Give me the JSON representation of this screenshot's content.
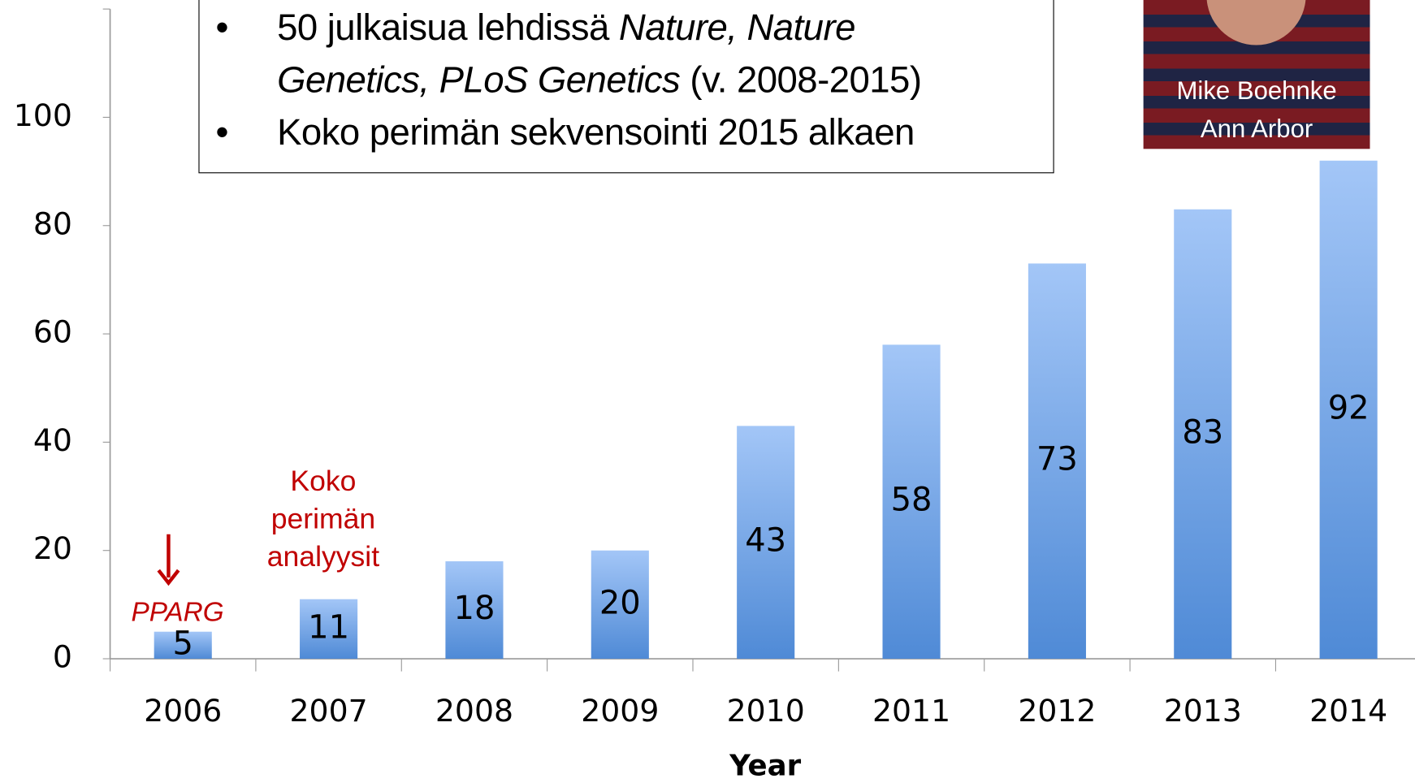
{
  "chart_data": {
    "type": "bar",
    "xlabel": "Year",
    "categories": [
      "2006",
      "2007",
      "2008",
      "2009",
      "2010",
      "2011",
      "2012",
      "2013",
      "2014"
    ],
    "values": [
      5,
      11,
      18,
      20,
      43,
      58,
      73,
      83,
      92
    ],
    "color": "#4f8ad6",
    "color_light": "#a3c6f7",
    "ylim": [
      0,
      120
    ],
    "yticks": [
      0,
      20,
      40,
      60,
      80,
      100
    ],
    "annotations": [
      {
        "text": "PPARG",
        "category": 0,
        "color": "#c00000",
        "italic": true
      },
      {
        "lines": [
          "Koko",
          "perimän",
          "analyysit"
        ],
        "category": 1,
        "color": "#c00000"
      }
    ]
  },
  "textbox": {
    "bullets": [
      [
        {
          "text": "50 julkaisua lehdissä "
        },
        {
          "text": "Nature, Nature Genetics, PLoS Genetics",
          "italic": true
        },
        {
          "text": " (v. 2008-2015)"
        }
      ],
      [
        {
          "text": "Koko perimän sekvensointi 2015 alkaen"
        }
      ]
    ]
  },
  "photo": {
    "caption": [
      "Mike Boehnke",
      "Ann Arbor"
    ]
  }
}
